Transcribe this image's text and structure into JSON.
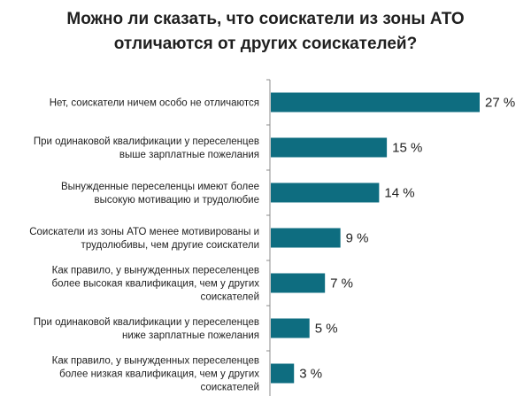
{
  "title": {
    "line1": "Можно ли  сказать, что соискатели из зоны АТО",
    "line2": "отличаются от других соискателей?"
  },
  "colors": {
    "bar": "#0e6d80",
    "axis": "#8c8c8c"
  },
  "chart_data": {
    "type": "bar",
    "orientation": "horizontal",
    "unit": "%",
    "xlim": [
      0,
      27
    ],
    "grid": false,
    "categories": [
      [
        "Нет, соискатели ничем особо не отличаются"
      ],
      [
        "При одинаковой квалификации у переселенцев",
        "выше зарплатные пожелания"
      ],
      [
        "Вынужденные переселенцы имеют более",
        "высокую мотивацию и трудолюбие"
      ],
      [
        "Соискатели из зоны АТО менее мотивированы и",
        "трудолюбивы,  чем другие соискатели"
      ],
      [
        "Как правило, у вынужденных переселенцев",
        "более высокая квалификация, чем у других",
        "соискателей"
      ],
      [
        "При одинаковой квалификации у переселенцев",
        "ниже зарплатные пожелания"
      ],
      [
        "Как правило, у вынужденных переселенцев",
        "более низкая квалификация, чем у других",
        "соискателей"
      ]
    ],
    "values": [
      27,
      15,
      14,
      9,
      7,
      5,
      3
    ],
    "value_labels": [
      "27 %",
      "15 %",
      "14 %",
      "9 %",
      "7 %",
      "5 %",
      "3 %"
    ]
  }
}
